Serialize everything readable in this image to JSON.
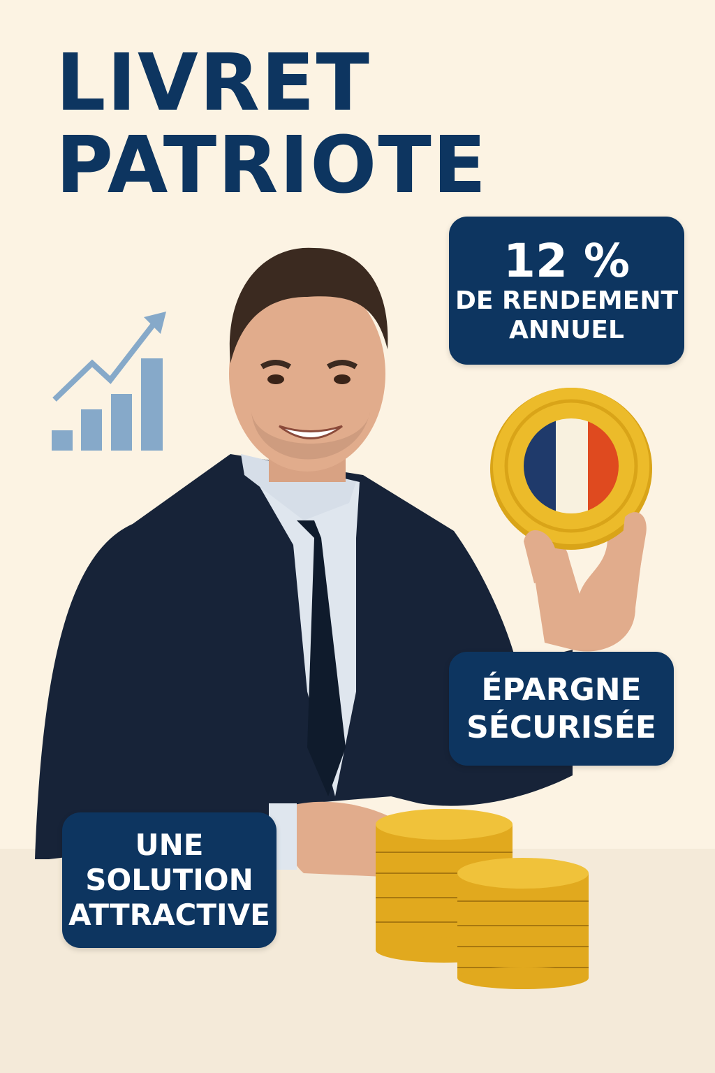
{
  "title": {
    "line1": "LIVRET",
    "line2": "PATRIOTE"
  },
  "badges": {
    "yield": {
      "value": "12 %",
      "line1": "DE RENDEMENT",
      "line2": "ANNUEL"
    },
    "savings": {
      "line1": "ÉPARGNE",
      "line2": "SÉCURISÉE"
    },
    "solution": {
      "line1": "UNE",
      "line2": "SOLUTION",
      "line3": "ATTRACTIVE"
    }
  },
  "icons": [
    "growth-chart-icon",
    "french-flag-coin",
    "gold-coin-stacks"
  ],
  "colors": {
    "navy": "#0d3560",
    "background": "#fcf3e3",
    "chart": "#86a9c9",
    "gold": "#ecbb2a",
    "flag_blue": "#1f3a6b",
    "flag_white": "#f8f1df",
    "flag_red": "#df4a1f"
  }
}
